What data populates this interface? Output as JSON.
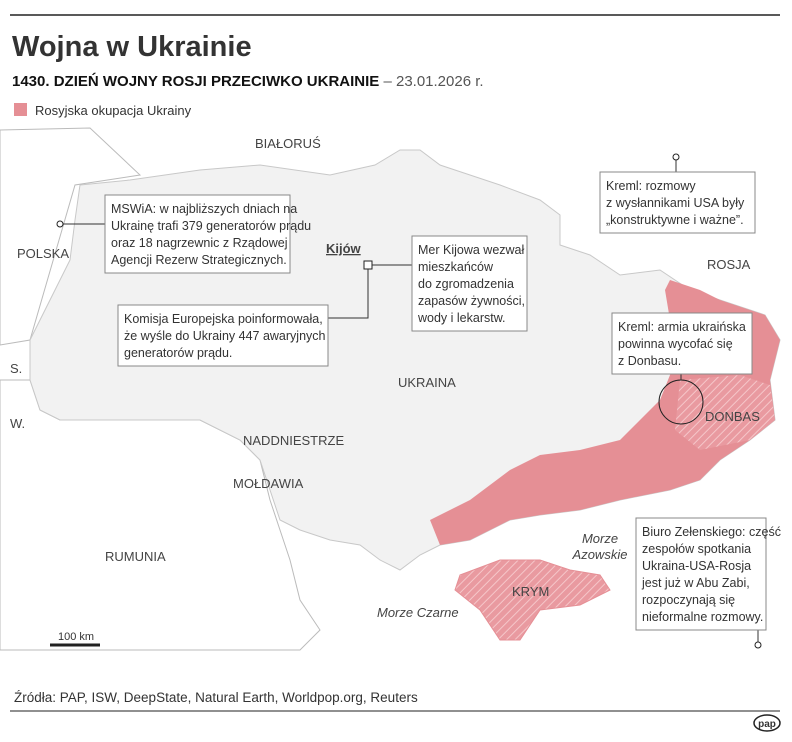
{
  "header": {
    "title": "Wojna w Ukrainie",
    "subtitle": "1430. DZIEŃ WOJNY ROSJI PRZECIWKO UKRAINIE",
    "date": " – 23.01.2026 r."
  },
  "legend": {
    "label": "Rosyjska okupacja Ukrainy"
  },
  "places": {
    "belarus": "BIAŁORUŚ",
    "poland": "POLSKA",
    "russia": "ROSJA",
    "ukraine": "UKRAINA",
    "moldova": "MOŁDAWIA",
    "romania": "RUMUNIA",
    "transnistria": "NADDNIESTRZE",
    "donbas": "DONBAS",
    "crimea": "KRYM",
    "slovakia": "S.",
    "hungary": "W.",
    "kyiv": "Kijów",
    "black_sea": "Morze Czarne",
    "azov_sea": [
      "Morze",
      "Azowskie"
    ]
  },
  "callouts": [
    {
      "lines": [
        "MSWiA: w najbliższych dniach na",
        "Ukrainę trafi 379 generatorów prądu",
        "oraz 18 nagrzewnic z Rządowej",
        "Agencji Rezerw Strategicznych."
      ]
    },
    {
      "lines": [
        "Komisja Europejska poinformowała,",
        "że wyśle do Ukrainy 447 awaryjnych",
        "generatorów prądu."
      ]
    },
    {
      "lines": [
        "Mer Kijowa wezwał",
        "mieszkańców",
        "do zgromadzenia",
        "zapasów żywności,",
        "wody i lekarstw."
      ]
    },
    {
      "lines": [
        "Kreml: rozmowy",
        "z wysłannikami USA były",
        "„konstruktywne i ważne”."
      ]
    },
    {
      "lines": [
        "Kreml: armia ukraińska",
        "powinna wycofać się",
        "z Donbasu."
      ]
    },
    {
      "lines": [
        "Biuro Zełenskiego: część",
        "zespołów spotkania",
        "Ukraina-USA-Rosja",
        "jest już w Abu Zabi,",
        "rozpoczynają się",
        "nieformalne rozmowy."
      ]
    }
  ],
  "scale": "100 km",
  "footer": {
    "source": "Źródła: PAP, ISW, DeepState, Natural Earth, Worldpop.org, Reuters",
    "logo": "pap"
  }
}
